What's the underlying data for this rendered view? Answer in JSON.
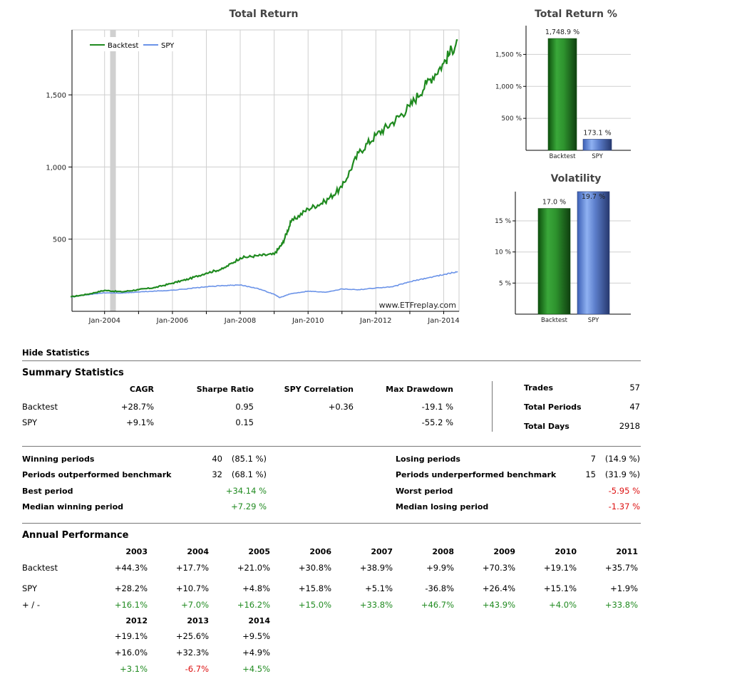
{
  "charts": {
    "total_return": {
      "title": "Total Return",
      "watermark": "www.ETFreplay.com",
      "legend": [
        "Backtest",
        "SPY"
      ],
      "y_ticks": [
        "500",
        "1,000",
        "1,500"
      ],
      "x_ticks": [
        "Jan-2004",
        "Jan-2006",
        "Jan-2008",
        "Jan-2010",
        "Jan-2012",
        "Jan-2014"
      ]
    },
    "total_return_pct": {
      "title": "Total Return %",
      "y_ticks": [
        "500 %",
        "1,000 %",
        "1,500 %"
      ],
      "categories": [
        "Backtest",
        "SPY"
      ],
      "labels": [
        "1,748.9 %",
        "173.1 %"
      ]
    },
    "volatility": {
      "title": "Volatility",
      "y_ticks": [
        "5 %",
        "10 %",
        "15 %"
      ],
      "categories": [
        "Backtest",
        "SPY"
      ],
      "labels": [
        "17.0 %",
        "19.7 %"
      ]
    }
  },
  "chart_data": [
    {
      "type": "line",
      "title": "Total Return",
      "series": [
        {
          "name": "Backtest",
          "x": [
            "2003-01",
            "2003-07",
            "2004-01",
            "2004-07",
            "2005-01",
            "2005-07",
            "2006-01",
            "2006-07",
            "2007-01",
            "2007-07",
            "2008-01",
            "2008-07",
            "2009-01",
            "2009-04",
            "2009-07",
            "2010-01",
            "2010-07",
            "2011-01",
            "2011-07",
            "2012-01",
            "2012-07",
            "2013-01",
            "2013-07",
            "2014-01",
            "2014-06"
          ],
          "values": [
            100,
            118,
            145,
            135,
            150,
            165,
            195,
            225,
            265,
            295,
            370,
            385,
            395,
            470,
            620,
            710,
            760,
            860,
            1100,
            1220,
            1310,
            1420,
            1580,
            1720,
            1880
          ]
        },
        {
          "name": "SPY",
          "x": [
            "2003-01",
            "2003-07",
            "2004-01",
            "2004-07",
            "2005-01",
            "2005-07",
            "2006-01",
            "2006-07",
            "2007-01",
            "2007-07",
            "2008-01",
            "2008-07",
            "2009-01",
            "2009-03",
            "2009-07",
            "2010-01",
            "2010-07",
            "2011-01",
            "2011-07",
            "2012-01",
            "2012-07",
            "2013-01",
            "2013-07",
            "2014-01",
            "2014-06"
          ],
          "values": [
            100,
            115,
            128,
            126,
            134,
            140,
            146,
            158,
            170,
            178,
            182,
            160,
            118,
            95,
            122,
            140,
            132,
            155,
            150,
            162,
            170,
            205,
            230,
            255,
            275
          ]
        }
      ],
      "ylim": [
        0,
        1950
      ],
      "legend_position": "top-left",
      "grid": true,
      "shaded_period": [
        "2004-03",
        "2004-05"
      ]
    },
    {
      "type": "bar",
      "title": "Total Return %",
      "categories": [
        "Backtest",
        "SPY"
      ],
      "values": [
        1748.9,
        173.1
      ],
      "ylim": [
        0,
        1950
      ],
      "grid": true
    },
    {
      "type": "bar",
      "title": "Volatility",
      "categories": [
        "Backtest",
        "SPY"
      ],
      "values": [
        17.0,
        19.7
      ],
      "ylim": [
        0,
        19.7
      ],
      "grid": true
    }
  ],
  "hide_stats_label": "Hide Statistics",
  "summary": {
    "title": "Summary Statistics",
    "headers": [
      "CAGR",
      "Sharpe Ratio",
      "SPY Correlation",
      "Max Drawdown"
    ],
    "rows": [
      {
        "name": "Backtest",
        "cagr": "+28.7%",
        "sharpe": "0.95",
        "corr": "+0.36",
        "maxdd": "-19.1 %"
      },
      {
        "name": "SPY",
        "cagr": "+9.1%",
        "sharpe": "0.15",
        "corr": "",
        "maxdd": "-55.2 %"
      }
    ],
    "right": [
      {
        "label": "Trades",
        "value": "57"
      },
      {
        "label": "Total Periods",
        "value": "47"
      },
      {
        "label": "Total Days",
        "value": "2918"
      }
    ]
  },
  "periods": {
    "left": [
      {
        "label": "Winning periods",
        "count": "40",
        "pct": "(85.1 %)"
      },
      {
        "label": "Periods outperformed benchmark",
        "count": "32",
        "pct": "(68.1 %)"
      },
      {
        "label": "Best period",
        "count": "",
        "pct": "+34.14 %"
      },
      {
        "label": "Median winning period",
        "count": "",
        "pct": "+7.29 %"
      }
    ],
    "right": [
      {
        "label": "Losing periods",
        "count": "7",
        "pct": "(14.9 %)"
      },
      {
        "label": "Periods underperformed benchmark",
        "count": "15",
        "pct": "(31.9 %)"
      },
      {
        "label": "Worst period",
        "count": "",
        "pct": "-5.95 %"
      },
      {
        "label": "Median losing period",
        "count": "",
        "pct": "-1.37 %"
      }
    ]
  },
  "annual": {
    "title": "Annual Performance",
    "row_labels": [
      "Backtest",
      "SPY",
      "+ / -"
    ],
    "years1": [
      "2003",
      "2004",
      "2005",
      "2006",
      "2007",
      "2008",
      "2009",
      "2010",
      "2011"
    ],
    "backtest1": [
      "+44.3%",
      "+17.7%",
      "+21.0%",
      "+30.8%",
      "+38.9%",
      "+9.9%",
      "+70.3%",
      "+19.1%",
      "+35.7%"
    ],
    "spy1": [
      "+28.2%",
      "+10.7%",
      "+4.8%",
      "+15.8%",
      "+5.1%",
      "-36.8%",
      "+26.4%",
      "+15.1%",
      "+1.9%"
    ],
    "diff1": [
      "+16.1%",
      "+7.0%",
      "+16.2%",
      "+15.0%",
      "+33.8%",
      "+46.7%",
      "+43.9%",
      "+4.0%",
      "+33.8%"
    ],
    "years2": [
      "2012",
      "2013",
      "2014"
    ],
    "backtest2": [
      "+19.1%",
      "+25.6%",
      "+9.5%"
    ],
    "spy2": [
      "+16.0%",
      "+32.3%",
      "+4.9%"
    ],
    "diff2": [
      "+3.1%",
      "-6.7%",
      "+4.5%"
    ]
  },
  "colors": {
    "backtest": "#1f8a1f",
    "spy": "#6b93e8",
    "positive": "#218b21",
    "negative": "#dd1111"
  }
}
